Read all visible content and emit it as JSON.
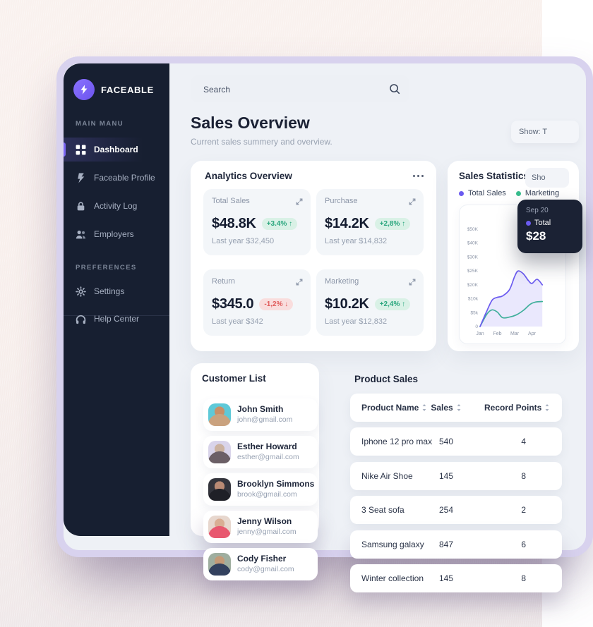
{
  "sidebar": {
    "brand": "FACEABLE",
    "sections": [
      {
        "label": "MAIN MANU",
        "items": [
          {
            "label": "Dashboard",
            "icon": "dashboard-grid-icon",
            "active": true
          },
          {
            "label": "Faceable Profile",
            "icon": "faceable-bolt-icon",
            "active": false
          },
          {
            "label": "Activity Log",
            "icon": "lock-icon",
            "active": false
          },
          {
            "label": "Employers",
            "icon": "people-icon",
            "active": false
          }
        ]
      },
      {
        "label": "PREFERENCES",
        "items": [
          {
            "label": "Settings",
            "icon": "gear-icon",
            "active": false
          },
          {
            "label": "Help Center",
            "icon": "headphones-icon",
            "active": false
          }
        ]
      }
    ]
  },
  "header": {
    "search_placeholder": "Search",
    "title": "Sales Overview",
    "subtitle": "Current sales summery and overview.",
    "show_button": "Show: T"
  },
  "analytics": {
    "title": "Analytics Overview",
    "cards": [
      {
        "label": "Total Sales",
        "value": "$48.8K",
        "delta": "+3.4% ↑",
        "trend": "up",
        "footnote": "Last year $32,450"
      },
      {
        "label": "Purchase",
        "value": "$14.2K",
        "delta": "+2,8% ↑",
        "trend": "up",
        "footnote": "Last year $14,832"
      },
      {
        "label": "Return",
        "value": "$345.0",
        "delta": "-1,2% ↓",
        "trend": "down",
        "footnote": "Last year $342"
      },
      {
        "label": "Marketing",
        "value": "$10.2K",
        "delta": "+2,4% ↑",
        "trend": "up",
        "footnote": "Last year $12,832"
      }
    ]
  },
  "sales_statistics": {
    "title": "Sales Statistics",
    "show_button": "Sho",
    "legend": [
      {
        "label": "Total Sales",
        "color": "#6b5bf0"
      },
      {
        "label": "Marketing",
        "color": "#38bd8d"
      }
    ],
    "tooltip": {
      "date": "Sep 20",
      "series": "Total",
      "value": "$28",
      "dot_color": "#6b5bf0"
    }
  },
  "chart_data": {
    "type": "area",
    "title": "Sales Statistics",
    "x_labels": [
      "Jan",
      "Feb",
      "Mar",
      "Apr"
    ],
    "y_tick_labels": [
      "$50K",
      "$40K",
      "$30K",
      "$25K",
      "$20K",
      "$10k",
      "$5k",
      "0"
    ],
    "y_tick_values": [
      50,
      40,
      30,
      25,
      20,
      10,
      5,
      0
    ],
    "grid": false,
    "legend_position": "top",
    "series": [
      {
        "name": "Total Sales",
        "color": "#6b5bf0",
        "fill": "rgba(107,91,240,0.14)",
        "points": [
          [
            0,
            0
          ],
          [
            0.35,
            5
          ],
          [
            0.7,
            9.5
          ],
          [
            1,
            11
          ],
          [
            1.3,
            12
          ],
          [
            1.7,
            16.5
          ],
          [
            2.0,
            23
          ],
          [
            2.2,
            25
          ],
          [
            2.5,
            24
          ],
          [
            2.8,
            21.5
          ],
          [
            3.0,
            20.5
          ],
          [
            3.3,
            22
          ],
          [
            3.6,
            20
          ]
        ]
      },
      {
        "name": "Marketing",
        "color": "#38bd8d",
        "fill": null,
        "points": [
          [
            0,
            0
          ],
          [
            0.4,
            4.5
          ],
          [
            0.7,
            6
          ],
          [
            1,
            5.2
          ],
          [
            1.3,
            3.2
          ],
          [
            1.7,
            3.4
          ],
          [
            2.1,
            4.2
          ],
          [
            2.5,
            5.8
          ],
          [
            2.9,
            8
          ],
          [
            3.2,
            8.8
          ],
          [
            3.6,
            9
          ]
        ]
      }
    ]
  },
  "customer_list": {
    "title": "Customer List",
    "customers": [
      {
        "name": "John Smith",
        "email": "john@gmail.com",
        "avatar": {
          "bg": "#5ec9d8",
          "face": "#c89068",
          "shirt": "#caa27e"
        }
      },
      {
        "name": "Esther Howard",
        "email": "esther@gmail.com",
        "avatar": {
          "bg": "#d9d4ea",
          "face": "#cbb2a0",
          "shirt": "#6b5f66"
        }
      },
      {
        "name": "Brooklyn Simmons",
        "email": "brook@gmail.com",
        "avatar": {
          "bg": "#33343c",
          "face": "#b98a74",
          "shirt": "#1f2027"
        }
      },
      {
        "name": "Jenny Wilson",
        "email": "jenny@gmail.com",
        "avatar": {
          "bg": "#e7d7ce",
          "face": "#d9ae94",
          "shirt": "#e8586f"
        }
      },
      {
        "name": "Cody Fisher",
        "email": "cody@gmail.com",
        "avatar": {
          "bg": "#9fae9f",
          "face": "#c49a77",
          "shirt": "#33415e"
        }
      }
    ]
  },
  "product_sales": {
    "title": "Product Sales",
    "columns": [
      "Product Name",
      "Sales",
      "Record Points"
    ],
    "rows": [
      [
        "Iphone 12 pro max",
        "540",
        "4"
      ],
      [
        "Nike Air Shoe",
        "145",
        "8"
      ],
      [
        "3 Seat sofa",
        "254",
        "2"
      ],
      [
        "Samsung galaxy",
        "847",
        "6"
      ],
      [
        "Winter collection",
        "145",
        "8"
      ]
    ]
  }
}
